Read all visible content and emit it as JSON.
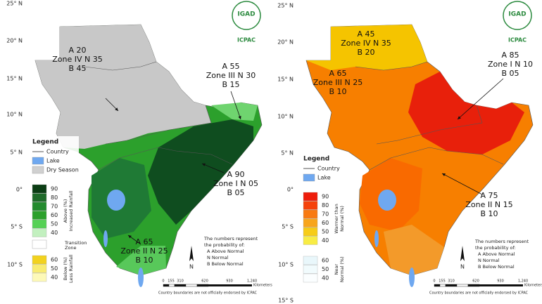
{
  "panels": [
    {
      "lat_labels": [
        "25° N",
        "20° N",
        "15° N",
        "10° N",
        "5° N",
        "0°",
        "5° S",
        "10° S"
      ],
      "logo": {
        "name": "IGAD",
        "org": "ICPAC"
      },
      "zones": [
        {
          "lines": [
            "A 20",
            "Zone IV N 35",
            "B 45"
          ]
        },
        {
          "lines": [
            "A 55",
            "Zone III N 30",
            "B 15"
          ]
        },
        {
          "lines": [
            "A 90",
            "Zone I N 05",
            "B 05"
          ]
        },
        {
          "lines": [
            "A 65",
            "Zone II N 25",
            "B 10"
          ]
        }
      ],
      "legend": {
        "title": "Legend",
        "items": [
          "Country",
          "Lake",
          "Dry Season"
        ],
        "groups": [
          {
            "ticks": [
              "90",
              "80",
              "70",
              "60",
              "50",
              "40"
            ],
            "title": [
              "Above (%)",
              "Increased Rainfall"
            ]
          },
          {
            "ticks": [
              "60",
              "50",
              "40"
            ],
            "title": [
              "Below (%)",
              "Less Rainfall"
            ]
          }
        ],
        "transition": [
          "Transition",
          "Zone"
        ]
      },
      "note": [
        "The numbers represent",
        "the probability of:",
        "A   Above Normal",
        "N   Normal",
        "B   Below Normal"
      ],
      "north": "N",
      "scale": [
        "0",
        "155",
        "310",
        "620",
        "930",
        "1,240"
      ],
      "scale_unit": "Kilometers",
      "disclaimer": "Country boundaries are not officially endorsed by ICPAC"
    },
    {
      "lat_labels": [
        "25° N",
        "20° N",
        "15° N",
        "10° N",
        "5° N",
        "0°",
        "5° S",
        "10° S",
        "15° S"
      ],
      "logo": {
        "name": "IGAD",
        "org": "ICPAC"
      },
      "zones": [
        {
          "lines": [
            "A 45",
            "Zone IV N 35",
            "B 20"
          ]
        },
        {
          "lines": [
            "A 65",
            "Zone III N 25",
            "B 10"
          ]
        },
        {
          "lines": [
            "A 85",
            "Zone I N 10",
            "B 05"
          ]
        },
        {
          "lines": [
            "A 75",
            "Zone II N 15",
            "B 10"
          ]
        }
      ],
      "legend": {
        "title": "Legend",
        "items": [
          "Country",
          "Lake"
        ],
        "groups": [
          {
            "ticks": [
              "90",
              "80",
              "70",
              "60",
              "50",
              "40"
            ],
            "title": [
              "Warmer than",
              "Normal (%)"
            ]
          },
          {
            "ticks": [
              "60",
              "50",
              "40"
            ],
            "title": [
              "Near",
              "Normal (%)"
            ]
          }
        ]
      },
      "note": [
        "The numbers represent",
        "the probability of:",
        "A   Above Normal",
        "N   Normal",
        "B   Below Normal"
      ],
      "north": "N",
      "scale": [
        "0",
        "155",
        "310",
        "620",
        "930",
        "1,240"
      ],
      "scale_unit": "Kilometers",
      "disclaimer": "Country boundaries are not officially endorsed by ICPAC"
    }
  ]
}
